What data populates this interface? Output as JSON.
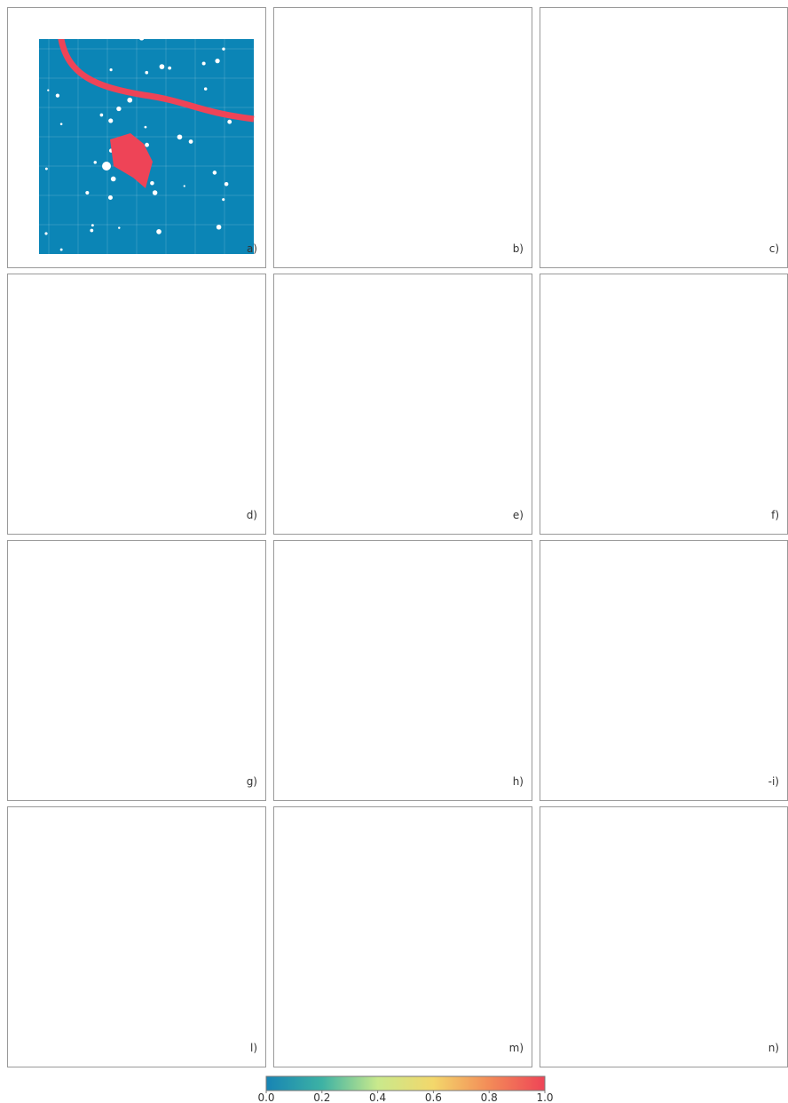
{
  "panels": [
    {
      "label": "a)"
    },
    {
      "label": "b)"
    },
    {
      "label": "c)"
    },
    {
      "label": "d)"
    },
    {
      "label": "e)"
    },
    {
      "label": "f)"
    },
    {
      "label": "g)"
    },
    {
      "label": "h)"
    },
    {
      "label": "-i)"
    },
    {
      "label": "l)"
    },
    {
      "label": "m)"
    },
    {
      "label": "n)"
    }
  ],
  "colorbar": {
    "lim": [
      0,
      1
    ],
    "ticks": [
      {
        "value": 0,
        "label": "0.0"
      },
      0.2,
      0.4,
      0.6,
      0.8,
      {
        "value": 1,
        "label": "1.0"
      }
    ]
  }
}
